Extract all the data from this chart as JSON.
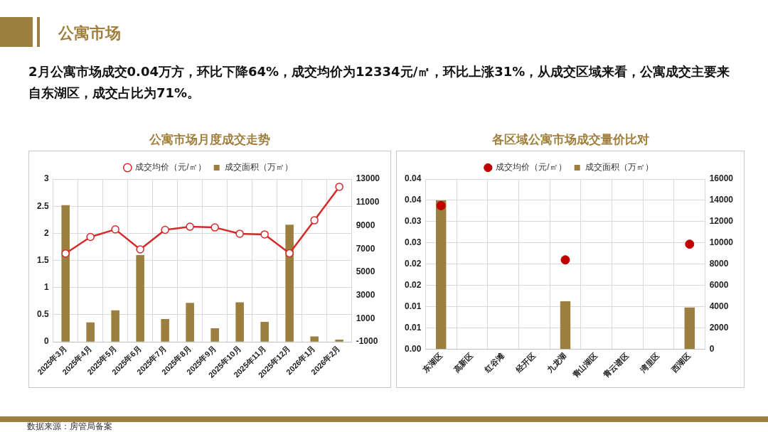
{
  "chart_data": [
    {
      "type": "other",
      "title": "公寓市场",
      "subtitle": "2月公寓市场成交0.04万方，环比下降64%，成交均价为12334元/㎡，环比上涨31%，从成交区域来看，公寓成交主要来自东湖区，成交占比为71%。",
      "annotations": [
        "数据来源：房管局备案"
      ]
    },
    {
      "type": "bar",
      "title": "公寓市场月度成交走势",
      "categories": [
        "2025年3月",
        "2025年4月",
        "2025年5月",
        "2025年6月",
        "2025年7月",
        "2025年8月",
        "2025年9月",
        "2025年10月",
        "2025年11月",
        "2025年12月",
        "2026年1月",
        "2026年2月"
      ],
      "series": [
        {
          "name": "成交面积（万㎡）",
          "type": "bar",
          "color": "#9c7e3e",
          "values": [
            2.52,
            0.36,
            0.58,
            1.6,
            0.42,
            0.72,
            0.25,
            0.73,
            0.37,
            2.16,
            0.1,
            0.04
          ]
        },
        {
          "name": "成交均价（元/㎡）",
          "type": "line",
          "axis": "y2",
          "marker": "circle",
          "color": "#d42a2a",
          "values": [
            6600,
            8020,
            8670,
            6950,
            8630,
            8900,
            8840,
            8300,
            8240,
            6620,
            9450,
            12334
          ]
        }
      ],
      "ylim": [
        0,
        3
      ],
      "yticks": [
        0,
        0.5,
        1,
        1.5,
        2,
        2.5,
        3
      ],
      "y2lim": [
        -1000,
        13000
      ],
      "y2ticks": [
        -1000,
        1000,
        3000,
        5000,
        7000,
        9000,
        11000,
        13000
      ],
      "grid": true,
      "legend": "top"
    },
    {
      "type": "bar",
      "title": "各区域公寓市场成交量价比对",
      "categories": [
        "东湖区",
        "高新区",
        "红谷滩",
        "经开区",
        "九龙湖",
        "青山湖区",
        "青云谱区",
        "湾里区",
        "西湖区"
      ],
      "series": [
        {
          "name": "成交面积（万㎡）",
          "type": "bar",
          "color": "#9c7e3e",
          "values": [
            0.035,
            null,
            null,
            null,
            0.0113,
            null,
            null,
            null,
            0.0098
          ]
        },
        {
          "name": "成交均价（元/㎡）",
          "type": "scatter",
          "axis": "y2",
          "marker": "circle",
          "color": "#c00000",
          "values": [
            13500,
            null,
            null,
            null,
            8400,
            null,
            null,
            null,
            9880
          ]
        }
      ],
      "ylim": [
        0,
        0.04
      ],
      "yticks": [
        {
          "value": 0,
          "label": "0.00"
        },
        {
          "value": 0.005,
          "label": "0.01"
        },
        {
          "value": 0.01,
          "label": "0.01"
        },
        {
          "value": 0.015,
          "label": "0.02"
        },
        {
          "value": 0.02,
          "label": "0.02"
        },
        {
          "value": 0.025,
          "label": "0.03"
        },
        {
          "value": 0.03,
          "label": "0.03"
        },
        {
          "value": 0.035,
          "label": "0.04"
        },
        {
          "value": 0.04,
          "label": "0.04"
        }
      ],
      "y2lim": [
        0,
        16000
      ],
      "y2ticks": [
        0,
        2000,
        4000,
        6000,
        8000,
        10000,
        12000,
        14000,
        16000
      ],
      "grid": true,
      "legend": "top"
    }
  ]
}
